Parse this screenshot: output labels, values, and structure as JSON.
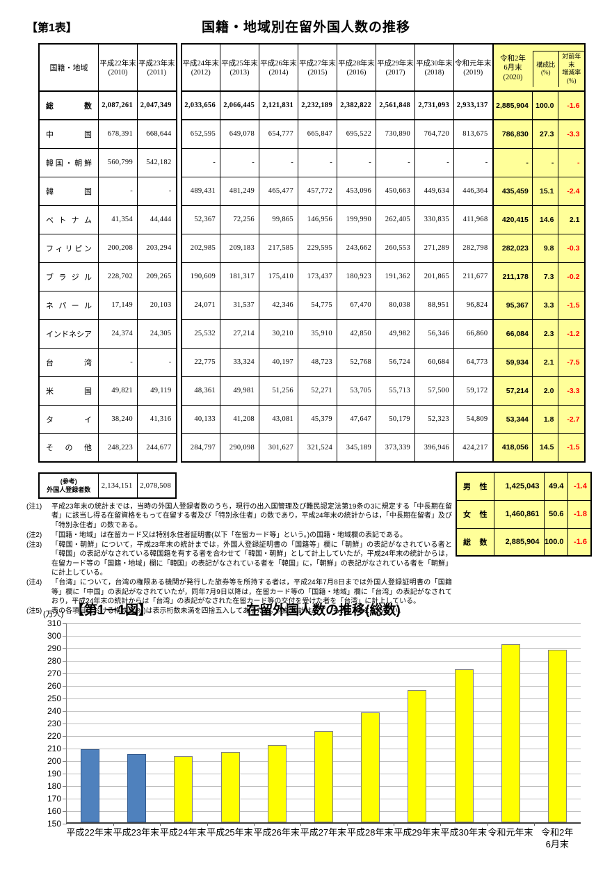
{
  "header": {
    "table_label": "【第1表】",
    "table_title": "国籍・地域別在留外国人数の推移"
  },
  "colors": {
    "highlight_bg": "#ffff99",
    "negative": "#ff0000",
    "bar_yellow": "#ffff00",
    "bar_blue": "#4f81bd"
  },
  "main_table": {
    "region_header": "国籍・地域",
    "year_headers": [
      {
        "era": "平成22年末",
        "year": "(2010)"
      },
      {
        "era": "平成23年末",
        "year": "(2011)"
      },
      {
        "era": "平成24年末",
        "year": "(2012)"
      },
      {
        "era": "平成25年末",
        "year": "(2013)"
      },
      {
        "era": "平成26年末",
        "year": "(2014)"
      },
      {
        "era": "平成27年末",
        "year": "(2015)"
      },
      {
        "era": "平成28年末",
        "year": "(2016)"
      },
      {
        "era": "平成29年末",
        "year": "(2017)"
      },
      {
        "era": "平成30年末",
        "year": "(2018)"
      },
      {
        "era": "令和元年末",
        "year": "(2019)"
      },
      {
        "era": "令和2年\n6月末",
        "year": "(2020)"
      }
    ],
    "ratio_header": "構成比\n(%)",
    "change_header": "対前年末\n増減率\n(%)",
    "rows": [
      {
        "name": "総数",
        "bold": true,
        "values": [
          "2,087,261",
          "2,047,349",
          "2,033,656",
          "2,066,445",
          "2,121,831",
          "2,232,189",
          "2,382,822",
          "2,561,848",
          "2,731,093",
          "2,933,137"
        ],
        "latest": "2,885,904",
        "ratio": "100.0",
        "change": "-1.6"
      },
      {
        "name": "中国",
        "bold": false,
        "values": [
          "678,391",
          "668,644",
          "652,595",
          "649,078",
          "654,777",
          "665,847",
          "695,522",
          "730,890",
          "764,720",
          "813,675"
        ],
        "latest": "786,830",
        "ratio": "27.3",
        "change": "-3.3"
      },
      {
        "name": "韓国・朝鮮",
        "bold": false,
        "values": [
          "560,799",
          "542,182",
          "-",
          "-",
          "-",
          "-",
          "-",
          "-",
          "-",
          "-"
        ],
        "latest": "-",
        "ratio": "-",
        "change": "-"
      },
      {
        "name": "韓国",
        "bold": false,
        "values": [
          "-",
          "-",
          "489,431",
          "481,249",
          "465,477",
          "457,772",
          "453,096",
          "450,663",
          "449,634",
          "446,364"
        ],
        "latest": "435,459",
        "ratio": "15.1",
        "change": "-2.4"
      },
      {
        "name": "ベトナム",
        "bold": false,
        "values": [
          "41,354",
          "44,444",
          "52,367",
          "72,256",
          "99,865",
          "146,956",
          "199,990",
          "262,405",
          "330,835",
          "411,968"
        ],
        "latest": "420,415",
        "ratio": "14.6",
        "change": "2.1"
      },
      {
        "name": "フィリピン",
        "bold": false,
        "values": [
          "200,208",
          "203,294",
          "202,985",
          "209,183",
          "217,585",
          "229,595",
          "243,662",
          "260,553",
          "271,289",
          "282,798"
        ],
        "latest": "282,023",
        "ratio": "9.8",
        "change": "-0.3"
      },
      {
        "name": "ブラジル",
        "bold": false,
        "values": [
          "228,702",
          "209,265",
          "190,609",
          "181,317",
          "175,410",
          "173,437",
          "180,923",
          "191,362",
          "201,865",
          "211,677"
        ],
        "latest": "211,178",
        "ratio": "7.3",
        "change": "-0.2"
      },
      {
        "name": "ネパール",
        "bold": false,
        "values": [
          "17,149",
          "20,103",
          "24,071",
          "31,537",
          "42,346",
          "54,775",
          "67,470",
          "80,038",
          "88,951",
          "96,824"
        ],
        "latest": "95,367",
        "ratio": "3.3",
        "change": "-1.5"
      },
      {
        "name": "インドネシア",
        "bold": false,
        "values": [
          "24,374",
          "24,305",
          "25,532",
          "27,214",
          "30,210",
          "35,910",
          "42,850",
          "49,982",
          "56,346",
          "66,860"
        ],
        "latest": "66,084",
        "ratio": "2.3",
        "change": "-1.2"
      },
      {
        "name": "台湾",
        "bold": false,
        "values": [
          "-",
          "-",
          "22,775",
          "33,324",
          "40,197",
          "48,723",
          "52,768",
          "56,724",
          "60,684",
          "64,773"
        ],
        "latest": "59,934",
        "ratio": "2.1",
        "change": "-7.5"
      },
      {
        "name": "米国",
        "bold": false,
        "values": [
          "49,821",
          "49,119",
          "48,361",
          "49,981",
          "51,256",
          "52,271",
          "53,705",
          "55,713",
          "57,500",
          "59,172"
        ],
        "latest": "57,214",
        "ratio": "2.0",
        "change": "-3.3"
      },
      {
        "name": "タイ",
        "bold": false,
        "values": [
          "38,240",
          "41,316",
          "40,133",
          "41,208",
          "43,081",
          "45,379",
          "47,647",
          "50,179",
          "52,323",
          "54,809"
        ],
        "latest": "53,344",
        "ratio": "1.8",
        "change": "-2.7"
      },
      {
        "name": "その他",
        "bold": false,
        "values": [
          "248,223",
          "244,677",
          "284,797",
          "290,098",
          "301,627",
          "321,524",
          "345,189",
          "373,339",
          "396,946",
          "424,217"
        ],
        "latest": "418,056",
        "ratio": "14.5",
        "change": "-1.5"
      }
    ]
  },
  "ref_table": {
    "label": "(参考)\n外国人登録者数",
    "values": [
      "2,134,151",
      "2,078,508"
    ]
  },
  "notes": [
    {
      "label": "(注1)",
      "text": "平成23年末の統計までは，当時の外国人登録者数のうち，現行の出入国管理及び難民認定法第19条の3に規定する「中長期在留者」に該当し得る在留資格をもって在留する者及び「特別永住者」の数であり，平成24年末の統計からは，「中長期在留者」及び「特別永住者」の数である。"
    },
    {
      "label": "(注2)",
      "text": "「国籍・地域」は在留カード又は特別永住者証明書(以下「在留カード等」という。)の国籍・地域欄の表記である。"
    },
    {
      "label": "(注3)",
      "text": "「韓国・朝鮮」について，平成23年末の統計までは，外国人登録証明書の「国籍等」欄に「朝鮮」の表記がなされている者と「韓国」の表記がなされている韓国籍を有する者を合わせて「韓国・朝鮮」として計上していたが，平成24年末の統計からは，在留カード等の「国籍・地域」欄に「韓国」の表記がなされている者を「韓国」に，「朝鮮」の表記がなされている者を「朝鮮」に計上している。"
    },
    {
      "label": "(注4)",
      "text": "「台湾」について，台湾の権限ある機関が発行した旅券等を所持する者は，平成24年7月8日までは外国人登録証明書の「国籍等」欄に「中国」の表記がなされていたが，同年7月9日以降は，在留カード等の「国籍・地域」欄に「台湾」の表記がなされており，平成24年末の統計からは「台湾」の表記がなされた在留カード等の交付を受けた者を「台湾」に計上している。"
    },
    {
      "label": "(注5)",
      "text": "表の各項目における構成比(%)は表示桁数未満を四捨五入してあるため，内訳の計は必ずしも100.0%とならない。"
    }
  ],
  "gender_table": {
    "rows": [
      {
        "label": "男性",
        "value": "1,425,043",
        "ratio": "49.4",
        "change": "-1.4"
      },
      {
        "label": "女性",
        "value": "1,460,861",
        "ratio": "50.6",
        "change": "-1.8"
      },
      {
        "label": "総数",
        "value": "2,885,904",
        "ratio": "100.0",
        "change": "-1.6"
      }
    ]
  },
  "chart_data": {
    "type": "bar",
    "figure_label": "【第1－1図】",
    "title": "在留外国人数の推移(総数)",
    "unit_label": "(万人)",
    "categories": [
      "平成22年末",
      "平成23年末",
      "平成24年末",
      "平成25年末",
      "平成26年末",
      "平成27年末",
      "平成28年末",
      "平成29年末",
      "平成30年末",
      "令和元年末",
      "令和2年\n6月末"
    ],
    "values": [
      208.7,
      204.7,
      203.4,
      206.6,
      212.2,
      223.2,
      238.3,
      256.2,
      273.1,
      293.3,
      288.6
    ],
    "bar_colors": [
      "#4f81bd",
      "#4f81bd",
      "#ffff00",
      "#ffff00",
      "#ffff00",
      "#ffff00",
      "#ffff00",
      "#ffff00",
      "#ffff00",
      "#ffff00",
      "#ffff00"
    ],
    "ylim": [
      150,
      310
    ],
    "ytick_step": 10,
    "grid": true,
    "legend": false
  }
}
